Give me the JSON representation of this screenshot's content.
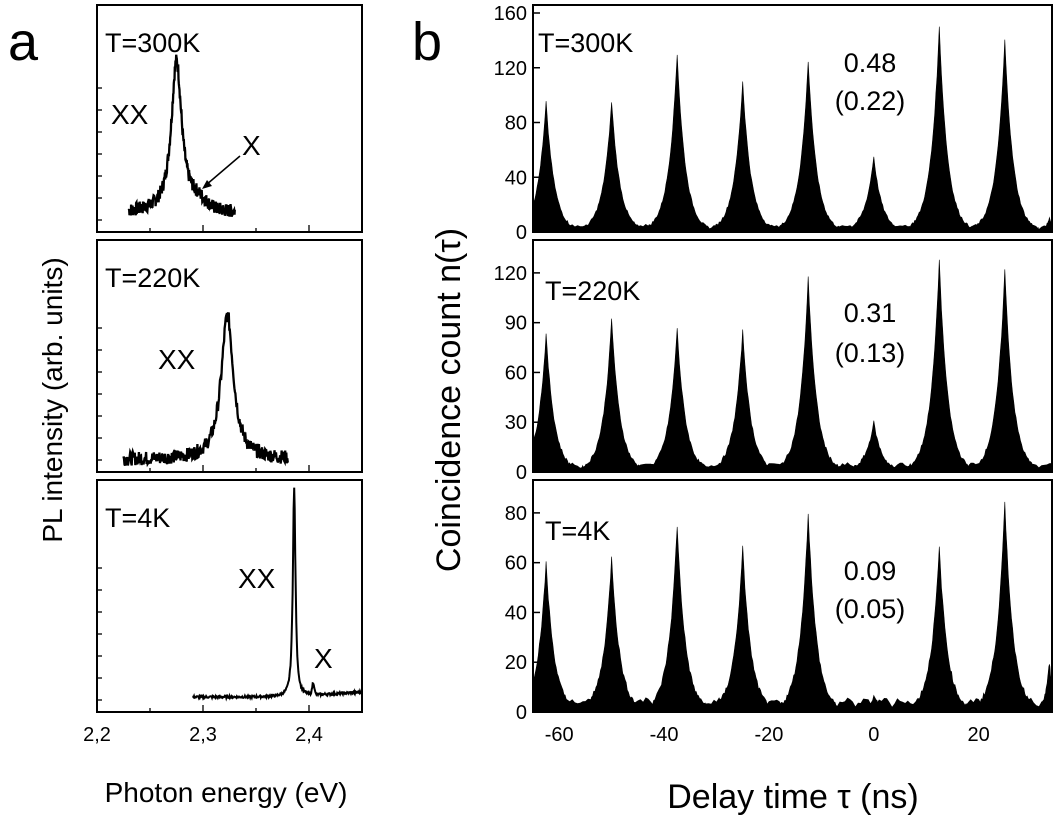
{
  "panel_a": {
    "letter": "a",
    "xlabel": "Photon energy (eV)",
    "ylabel": "PL intensity (arb. units)",
    "xticks": [
      "2,2",
      "2,3",
      "2,4"
    ]
  },
  "panel_b": {
    "letter": "b",
    "xlabel": "Delay time τ (ns)",
    "ylabel": "Coincidence count n(τ)",
    "xticks": [
      "-60",
      "-40",
      "-20",
      "0",
      "20"
    ]
  },
  "chart_data": [
    {
      "type": "line",
      "panel": "a",
      "xlabel": "Photon energy (eV)",
      "ylabel": "PL intensity (arb. units)",
      "xlim": [
        2.2,
        2.45
      ],
      "subplots": [
        {
          "temperature": "T=300K",
          "peak_labels": [
            "XX",
            "X"
          ],
          "xx_peak_eV": 2.275,
          "x_range": [
            2.23,
            2.33
          ],
          "peak_height": 0.67,
          "baseline": 0.05,
          "width_eV": 0.006
        },
        {
          "temperature": "T=220K",
          "peak_labels": [
            "XX"
          ],
          "xx_peak_eV": 2.323,
          "x_range": [
            2.225,
            2.38
          ],
          "peak_height": 0.62,
          "baseline": 0.02,
          "width_eV": 0.007
        },
        {
          "temperature": "T=4K",
          "peak_labels": [
            "XX",
            "X"
          ],
          "xx_peak_eV": 2.386,
          "x_peak_eV": 2.404,
          "x_range": [
            2.29,
            2.45
          ],
          "peak_height": 0.9,
          "baseline": 0.03,
          "width_eV": 0.0015
        }
      ]
    },
    {
      "type": "bar",
      "panel": "b",
      "xlabel": "Delay time τ (ns)",
      "ylabel": "Coincidence count n(τ)",
      "xlim": [
        -65,
        34
      ],
      "peak_centers_ns": [
        -62.5,
        -50,
        -37.5,
        -25,
        -12.5,
        0,
        12.5,
        25,
        33.5
      ],
      "subplots": [
        {
          "temperature": "T=300K",
          "g2": "0.48",
          "g2_corrected": "(0.22)",
          "ylim": [
            0,
            160
          ],
          "yticks": [
            "0",
            "40",
            "80",
            "120",
            "160"
          ],
          "peak_values": [
            95,
            95,
            130,
            110,
            125,
            55,
            150,
            140,
            10
          ]
        },
        {
          "temperature": "T=220K",
          "g2": "0.31",
          "g2_corrected": "(0.13)",
          "ylim": [
            0,
            135
          ],
          "yticks": [
            "0",
            "30",
            "60",
            "90",
            "120"
          ],
          "peak_values": [
            83,
            92,
            86,
            85,
            117,
            30,
            128,
            122,
            0
          ]
        },
        {
          "temperature": "T=4K",
          "g2": "0.09",
          "g2_corrected": "(0.05)",
          "ylim": [
            0,
            90
          ],
          "yticks": [
            "0",
            "20",
            "40",
            "60",
            "80"
          ],
          "peak_values": [
            60,
            62,
            75,
            66,
            80,
            6,
            66,
            84,
            20
          ]
        }
      ]
    }
  ]
}
